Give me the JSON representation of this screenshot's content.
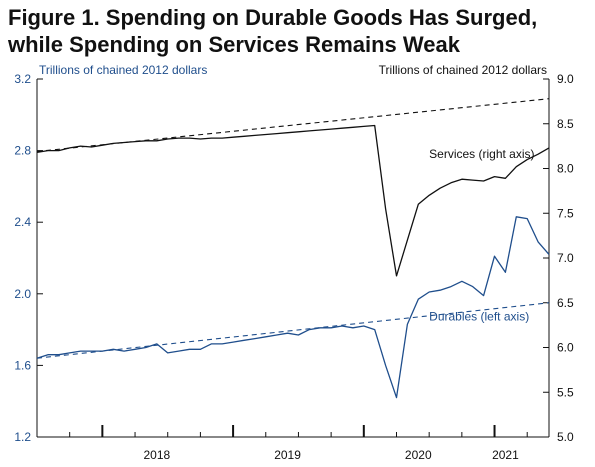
{
  "title_line1": "Figure 1. Spending on Durable Goods Has Surged,",
  "title_line2": "while Spending on Services Remains Weak",
  "colors": {
    "durables": "#1f4e8c",
    "services": "#111111",
    "axis": "#111111"
  },
  "chart_data": {
    "type": "line",
    "x_unit": "month",
    "x_range": [
      "2017-07",
      "2021-06"
    ],
    "x_tick_labels": [
      "2018",
      "2019",
      "2020",
      "2021"
    ],
    "x_tick_label_positions": [
      "2018-06",
      "2019-06",
      "2020-06",
      "2021-02"
    ],
    "x_major_ticks": [
      "2018-01",
      "2019-01",
      "2020-01",
      "2021-01"
    ],
    "left_axis": {
      "label": "Trillions of chained 2012 dollars",
      "ylim": [
        1.2,
        3.2
      ],
      "ticks": [
        "1.2",
        "1.6",
        "2.0",
        "2.4",
        "2.8",
        "3.2"
      ]
    },
    "right_axis": {
      "label": "Trillions of chained 2012 dollars",
      "ylim": [
        5.0,
        9.0
      ],
      "ticks": [
        "5.0",
        "5.5",
        "6.0",
        "6.5",
        "7.0",
        "7.5",
        "8.0",
        "8.5",
        "9.0"
      ]
    },
    "grid": false,
    "series": [
      {
        "name": "Services (right axis)",
        "axis": "right",
        "style": "solid",
        "points": [
          [
            "2017-07",
            8.18
          ],
          [
            "2017-08",
            8.2
          ],
          [
            "2017-09",
            8.2
          ],
          [
            "2017-10",
            8.23
          ],
          [
            "2017-11",
            8.25
          ],
          [
            "2017-12",
            8.24
          ],
          [
            "2018-01",
            8.26
          ],
          [
            "2018-02",
            8.28
          ],
          [
            "2018-03",
            8.29
          ],
          [
            "2018-04",
            8.3
          ],
          [
            "2018-05",
            8.31
          ],
          [
            "2018-06",
            8.31
          ],
          [
            "2018-07",
            8.33
          ],
          [
            "2018-08",
            8.34
          ],
          [
            "2018-09",
            8.34
          ],
          [
            "2018-10",
            8.33
          ],
          [
            "2018-11",
            8.34
          ],
          [
            "2018-12",
            8.34
          ],
          [
            "2019-01",
            8.35
          ],
          [
            "2019-02",
            8.36
          ],
          [
            "2019-03",
            8.37
          ],
          [
            "2019-04",
            8.38
          ],
          [
            "2019-05",
            8.39
          ],
          [
            "2019-06",
            8.4
          ],
          [
            "2019-07",
            8.41
          ],
          [
            "2019-08",
            8.42
          ],
          [
            "2019-09",
            8.43
          ],
          [
            "2019-10",
            8.44
          ],
          [
            "2019-11",
            8.45
          ],
          [
            "2019-12",
            8.46
          ],
          [
            "2020-01",
            8.47
          ],
          [
            "2020-02",
            8.48
          ],
          [
            "2020-03",
            7.55
          ],
          [
            "2020-04",
            6.8
          ],
          [
            "2020-05",
            7.2
          ],
          [
            "2020-06",
            7.6
          ],
          [
            "2020-07",
            7.7
          ],
          [
            "2020-08",
            7.78
          ],
          [
            "2020-09",
            7.84
          ],
          [
            "2020-10",
            7.88
          ],
          [
            "2020-11",
            7.87
          ],
          [
            "2020-12",
            7.86
          ],
          [
            "2021-01",
            7.91
          ],
          [
            "2021-02",
            7.89
          ],
          [
            "2021-03",
            8.02
          ],
          [
            "2021-04",
            8.1
          ],
          [
            "2021-05",
            8.16
          ],
          [
            "2021-06",
            8.23
          ]
        ]
      },
      {
        "name": "Durables (left axis)",
        "axis": "left",
        "style": "solid",
        "points": [
          [
            "2017-07",
            1.64
          ],
          [
            "2017-08",
            1.66
          ],
          [
            "2017-09",
            1.66
          ],
          [
            "2017-10",
            1.67
          ],
          [
            "2017-11",
            1.68
          ],
          [
            "2017-12",
            1.68
          ],
          [
            "2018-01",
            1.68
          ],
          [
            "2018-02",
            1.69
          ],
          [
            "2018-03",
            1.68
          ],
          [
            "2018-04",
            1.69
          ],
          [
            "2018-05",
            1.7
          ],
          [
            "2018-06",
            1.72
          ],
          [
            "2018-07",
            1.67
          ],
          [
            "2018-08",
            1.68
          ],
          [
            "2018-09",
            1.69
          ],
          [
            "2018-10",
            1.69
          ],
          [
            "2018-11",
            1.72
          ],
          [
            "2018-12",
            1.72
          ],
          [
            "2019-01",
            1.73
          ],
          [
            "2019-02",
            1.74
          ],
          [
            "2019-03",
            1.75
          ],
          [
            "2019-04",
            1.76
          ],
          [
            "2019-05",
            1.77
          ],
          [
            "2019-06",
            1.78
          ],
          [
            "2019-07",
            1.77
          ],
          [
            "2019-08",
            1.8
          ],
          [
            "2019-09",
            1.81
          ],
          [
            "2019-10",
            1.81
          ],
          [
            "2019-11",
            1.82
          ],
          [
            "2019-12",
            1.81
          ],
          [
            "2020-01",
            1.82
          ],
          [
            "2020-02",
            1.8
          ],
          [
            "2020-03",
            1.6
          ],
          [
            "2020-04",
            1.42
          ],
          [
            "2020-05",
            1.83
          ],
          [
            "2020-06",
            1.97
          ],
          [
            "2020-07",
            2.01
          ],
          [
            "2020-08",
            2.02
          ],
          [
            "2020-09",
            2.04
          ],
          [
            "2020-10",
            2.07
          ],
          [
            "2020-11",
            2.04
          ],
          [
            "2020-12",
            1.99
          ],
          [
            "2021-01",
            2.21
          ],
          [
            "2021-02",
            2.12
          ],
          [
            "2021-03",
            2.43
          ],
          [
            "2021-04",
            2.42
          ],
          [
            "2021-05",
            2.29
          ],
          [
            "2021-06",
            2.22
          ]
        ]
      },
      {
        "name": "",
        "axis": "right",
        "style": "dashed",
        "points": [
          [
            "2017-07",
            8.19
          ],
          [
            "2021-06",
            8.78
          ]
        ]
      },
      {
        "name": "",
        "axis": "left",
        "style": "dashed",
        "points": [
          [
            "2017-07",
            1.64
          ],
          [
            "2021-06",
            1.95
          ]
        ]
      }
    ],
    "annotations": [
      {
        "text": "Services (right axis)",
        "axis": "right",
        "x": "2020-07",
        "y": 8.12
      },
      {
        "text": "Durables (left axis)",
        "axis": "left",
        "x": "2020-07",
        "y": 1.85
      }
    ]
  }
}
